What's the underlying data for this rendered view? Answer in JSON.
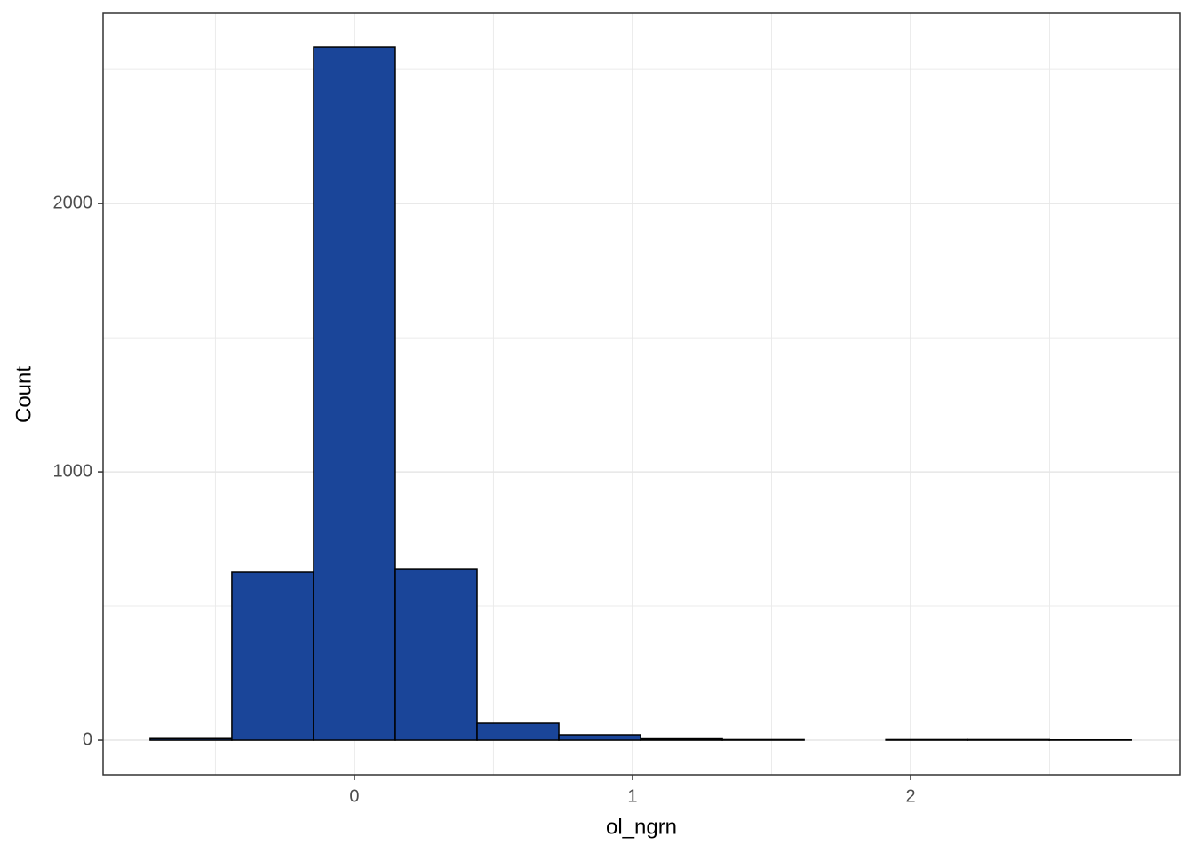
{
  "chart_data": {
    "type": "histogram",
    "x_label": "ol_ngrn",
    "y_label": "Count",
    "bins": [
      -0.735,
      -0.441,
      -0.147,
      0.147,
      0.441,
      0.735,
      1.029,
      1.323,
      1.617,
      1.911,
      2.205,
      2.499,
      2.793
    ],
    "values": [
      6,
      626,
      2583,
      639,
      63,
      20,
      5,
      2,
      0,
      2,
      2,
      1
    ],
    "color": "#1a4599",
    "edge_color": "#000000",
    "xlim": [
      -0.904,
      2.968
    ],
    "ylim": [
      -129,
      2709
    ],
    "xticks": [
      0,
      1,
      2
    ],
    "yticks": [
      0,
      1000,
      2000
    ],
    "x_minor_grid": [
      -0.5,
      0.5,
      1.5,
      2.5
    ],
    "y_minor_grid": [
      500,
      1500,
      2500
    ],
    "grid": true
  }
}
